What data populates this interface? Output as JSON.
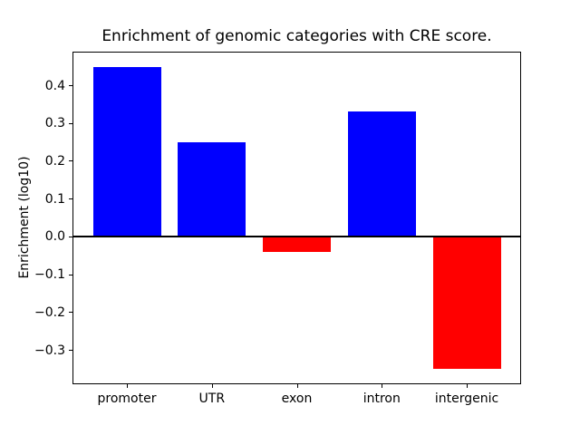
{
  "chart_data": {
    "type": "bar",
    "title": "Enrichment of genomic categories with CRE score.",
    "xlabel": "",
    "ylabel": "Enrichment (log10)",
    "categories": [
      "promoter",
      "UTR",
      "exon",
      "intron",
      "intergenic"
    ],
    "values": [
      0.45,
      0.25,
      -0.04,
      0.333,
      -0.35
    ],
    "bar_colors": [
      "#0000ff",
      "#0000ff",
      "#ff0000",
      "#0000ff",
      "#ff0000"
    ],
    "positive_color": "#0000ff",
    "negative_color": "#ff0000",
    "bar_width_units": 0.8,
    "xlim": [
      -0.64,
      4.64
    ],
    "ylim": [
      -0.39,
      0.49
    ],
    "yticks": [
      0.4,
      0.3,
      0.2,
      0.1,
      0.0,
      -0.1,
      -0.2,
      -0.3
    ],
    "ytick_labels": [
      "0.4",
      "0.3",
      "0.2",
      "0.1",
      "0.0",
      "−0.1",
      "−0.2",
      "−0.3"
    ],
    "zero_line": true,
    "grid": false,
    "legend": null,
    "background_color": "#ffffff",
    "axis_color": "#000000"
  }
}
